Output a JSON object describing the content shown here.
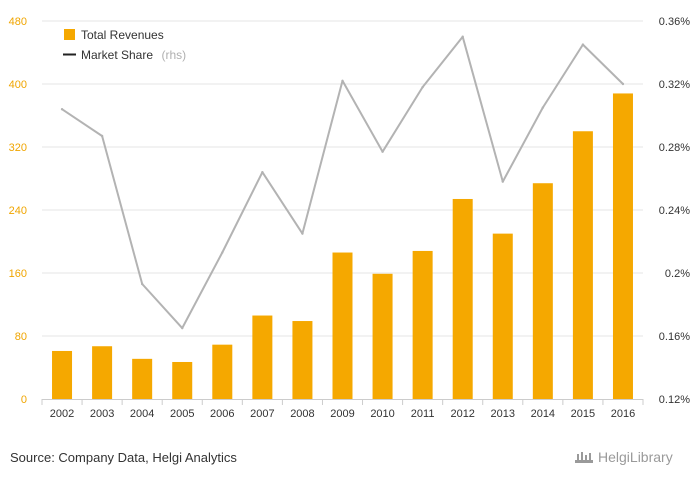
{
  "chart_data": {
    "type": "bar+line",
    "categories": [
      "2002",
      "2003",
      "2004",
      "2005",
      "2006",
      "2007",
      "2008",
      "2009",
      "2010",
      "2011",
      "2012",
      "2013",
      "2014",
      "2015",
      "2016"
    ],
    "series": [
      {
        "name": "Total Revenues",
        "type": "bar",
        "axis": "left",
        "color": "#f5a800",
        "values": [
          61,
          67,
          51,
          47,
          69,
          106,
          99,
          186,
          159,
          188,
          254,
          210,
          274,
          340,
          388
        ]
      },
      {
        "name": "Market Share",
        "name_suffix": "(rhs)",
        "type": "line",
        "axis": "right",
        "color": "#b3b3b3",
        "values": [
          0.304,
          0.287,
          0.193,
          0.165,
          0.213,
          0.264,
          0.225,
          0.322,
          0.277,
          0.318,
          0.35,
          0.258,
          0.305,
          0.345,
          0.32
        ]
      }
    ],
    "y_left": {
      "min": 0,
      "max": 480,
      "ticks": [
        "0",
        "80",
        "160",
        "240",
        "320",
        "400",
        "480"
      ]
    },
    "y_right": {
      "min": 0.12,
      "max": 0.36,
      "ticks": [
        "0.12%",
        "0.16%",
        "0.2%",
        "0.24%",
        "0.28%",
        "0.32%",
        "0.36%"
      ]
    },
    "grid": true,
    "legend_position": "top-left"
  },
  "legend": {
    "revenues_label": "Total Revenues",
    "market_share_label": "Market Share",
    "market_share_suffix": "(rhs)"
  },
  "footer": {
    "source": "Source: Company Data, Helgi Analytics",
    "brand": "HelgiLibrary"
  },
  "colors": {
    "bar": "#f5a800",
    "line": "#b3b3b3",
    "grid": "#e6e6e6",
    "left_tick": "#f0a500"
  }
}
